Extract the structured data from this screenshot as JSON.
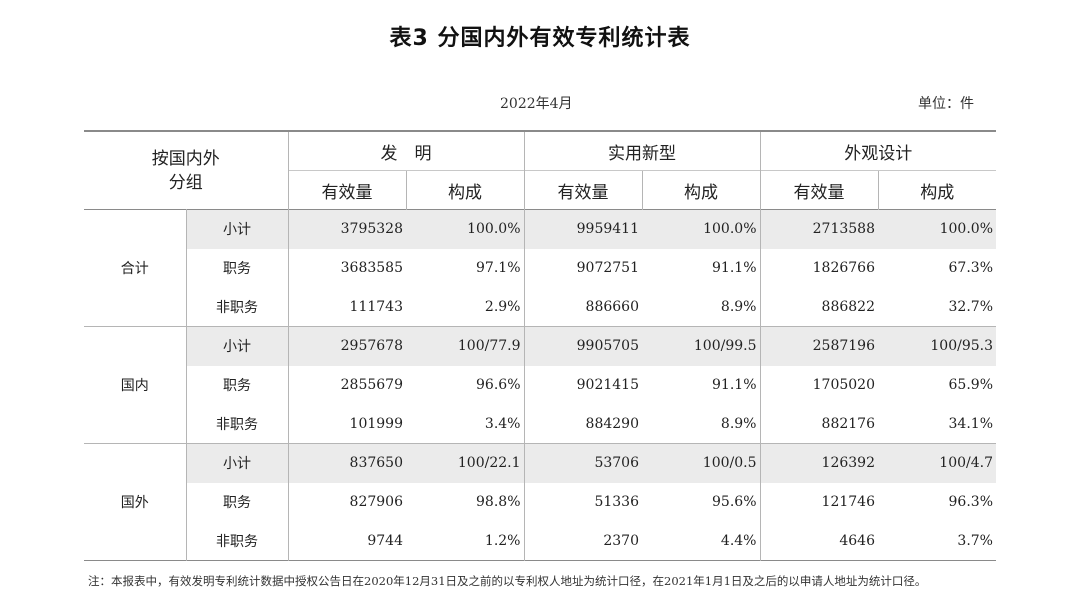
{
  "title": "表3  分国内外有效专利统计表",
  "date": "2022年4月",
  "unit": "单位：件",
  "header": {
    "corner": [
      "按国内外",
      "分组"
    ],
    "groups": [
      "发　明",
      "实用新型",
      "外观设计"
    ],
    "sub": [
      "有效量",
      "构成",
      "有效量",
      "构成",
      "有效量",
      "构成"
    ]
  },
  "sections": [
    {
      "name": "合计",
      "rows": [
        {
          "label": "小计",
          "values": [
            "3795328",
            "100.0%",
            "9959411",
            "100.0%",
            "2713588",
            "100.0%"
          ]
        },
        {
          "label": "职务",
          "values": [
            "3683585",
            "97.1%",
            "9072751",
            "91.1%",
            "1826766",
            "67.3%"
          ]
        },
        {
          "label": "非职务",
          "values": [
            "111743",
            "2.9%",
            "886660",
            "8.9%",
            "886822",
            "32.7%"
          ]
        }
      ]
    },
    {
      "name": "国内",
      "rows": [
        {
          "label": "小计",
          "values": [
            "2957678",
            "100/77.9",
            "9905705",
            "100/99.5",
            "2587196",
            "100/95.3"
          ]
        },
        {
          "label": "职务",
          "values": [
            "2855679",
            "96.6%",
            "9021415",
            "91.1%",
            "1705020",
            "65.9%"
          ]
        },
        {
          "label": "非职务",
          "values": [
            "101999",
            "3.4%",
            "884290",
            "8.9%",
            "882176",
            "34.1%"
          ]
        }
      ]
    },
    {
      "name": "国外",
      "rows": [
        {
          "label": "小计",
          "values": [
            "837650",
            "100/22.1",
            "53706",
            "100/0.5",
            "126392",
            "100/4.7"
          ]
        },
        {
          "label": "职务",
          "values": [
            "827906",
            "98.8%",
            "51336",
            "95.6%",
            "121746",
            "96.3%"
          ]
        },
        {
          "label": "非职务",
          "values": [
            "9744",
            "1.2%",
            "2370",
            "4.4%",
            "4646",
            "3.7%"
          ]
        }
      ]
    }
  ],
  "note": "注：本报表中，有效发明专利统计数据中授权公告日在2020年12月31日及之前的以专利权人地址为统计口径，在2021年1月1日及之后的以申请人地址为统计口径。"
}
